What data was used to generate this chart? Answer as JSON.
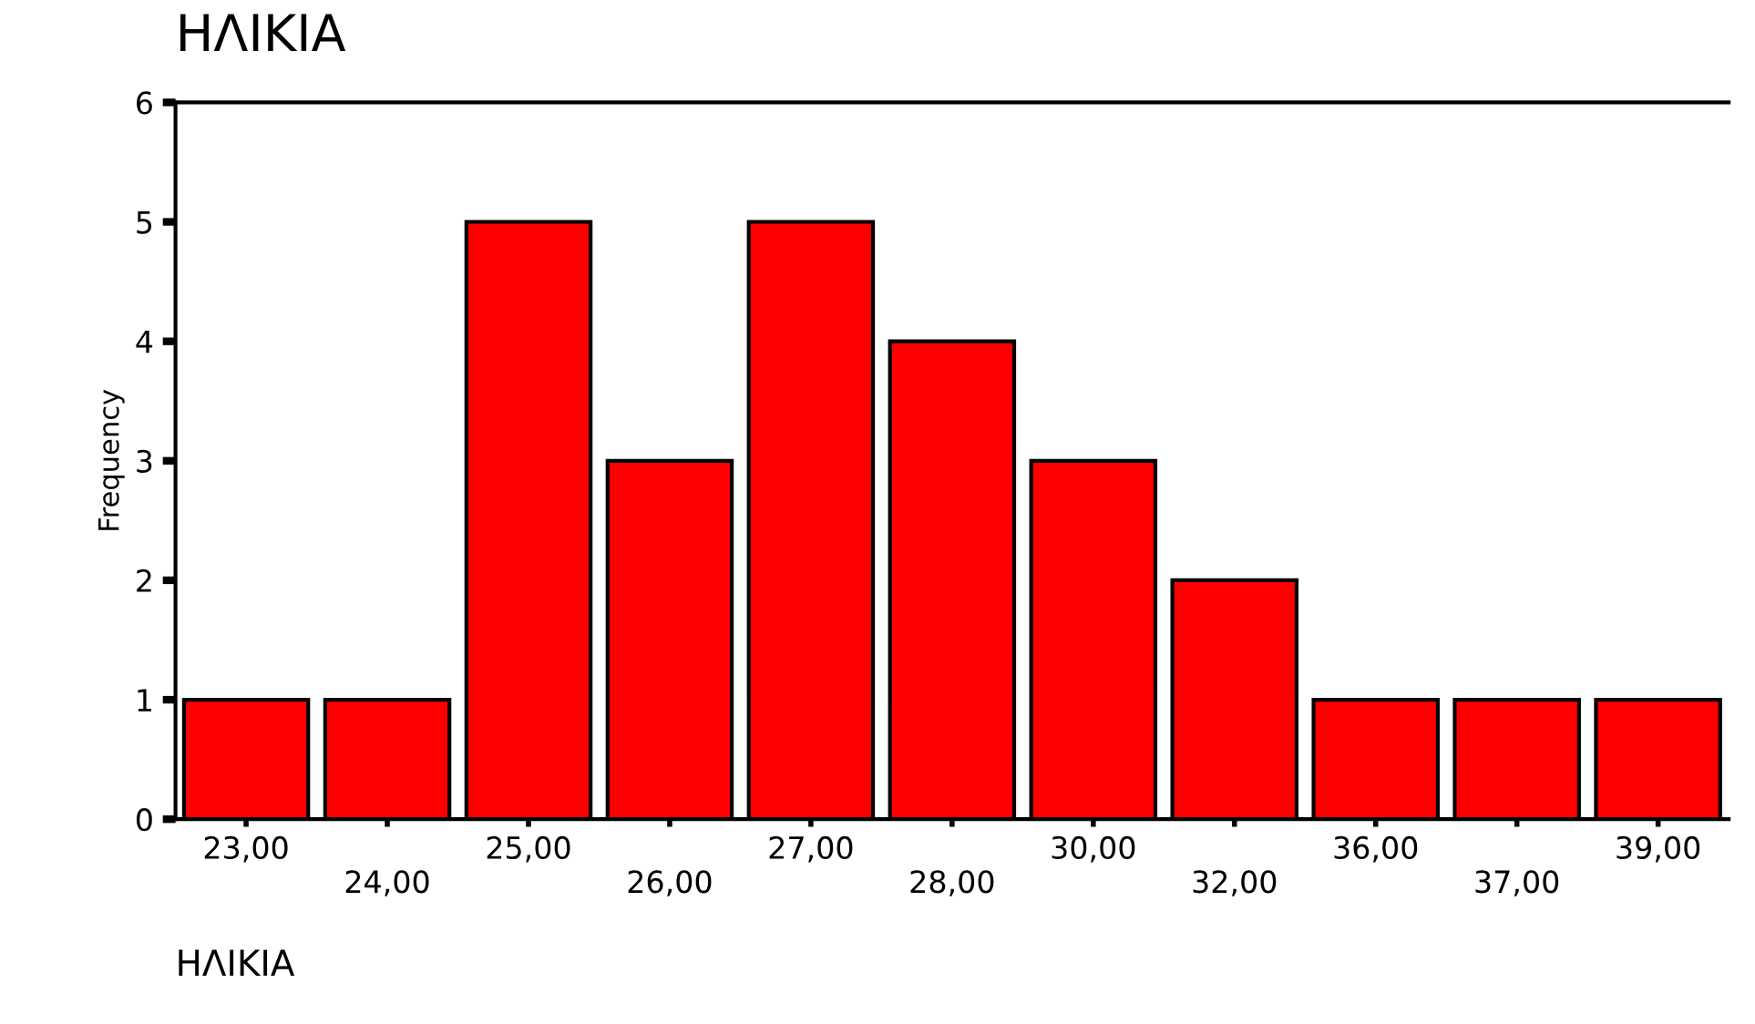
{
  "chart_data": {
    "type": "bar",
    "title": "ΗΛΙΚΙΑ",
    "xlabel": "ΗΛΙΚΙΑ",
    "ylabel": "Frequency",
    "categories": [
      "23,00",
      "24,00",
      "25,00",
      "26,00",
      "27,00",
      "28,00",
      "30,00",
      "32,00",
      "36,00",
      "37,00",
      "39,00"
    ],
    "values": [
      1,
      1,
      5,
      3,
      5,
      4,
      3,
      2,
      1,
      1,
      1
    ],
    "color": "#ff0000",
    "ylim": [
      0,
      6
    ],
    "yticks": [
      0,
      1,
      2,
      3,
      4,
      5,
      6
    ],
    "grid": false,
    "legend": false
  }
}
